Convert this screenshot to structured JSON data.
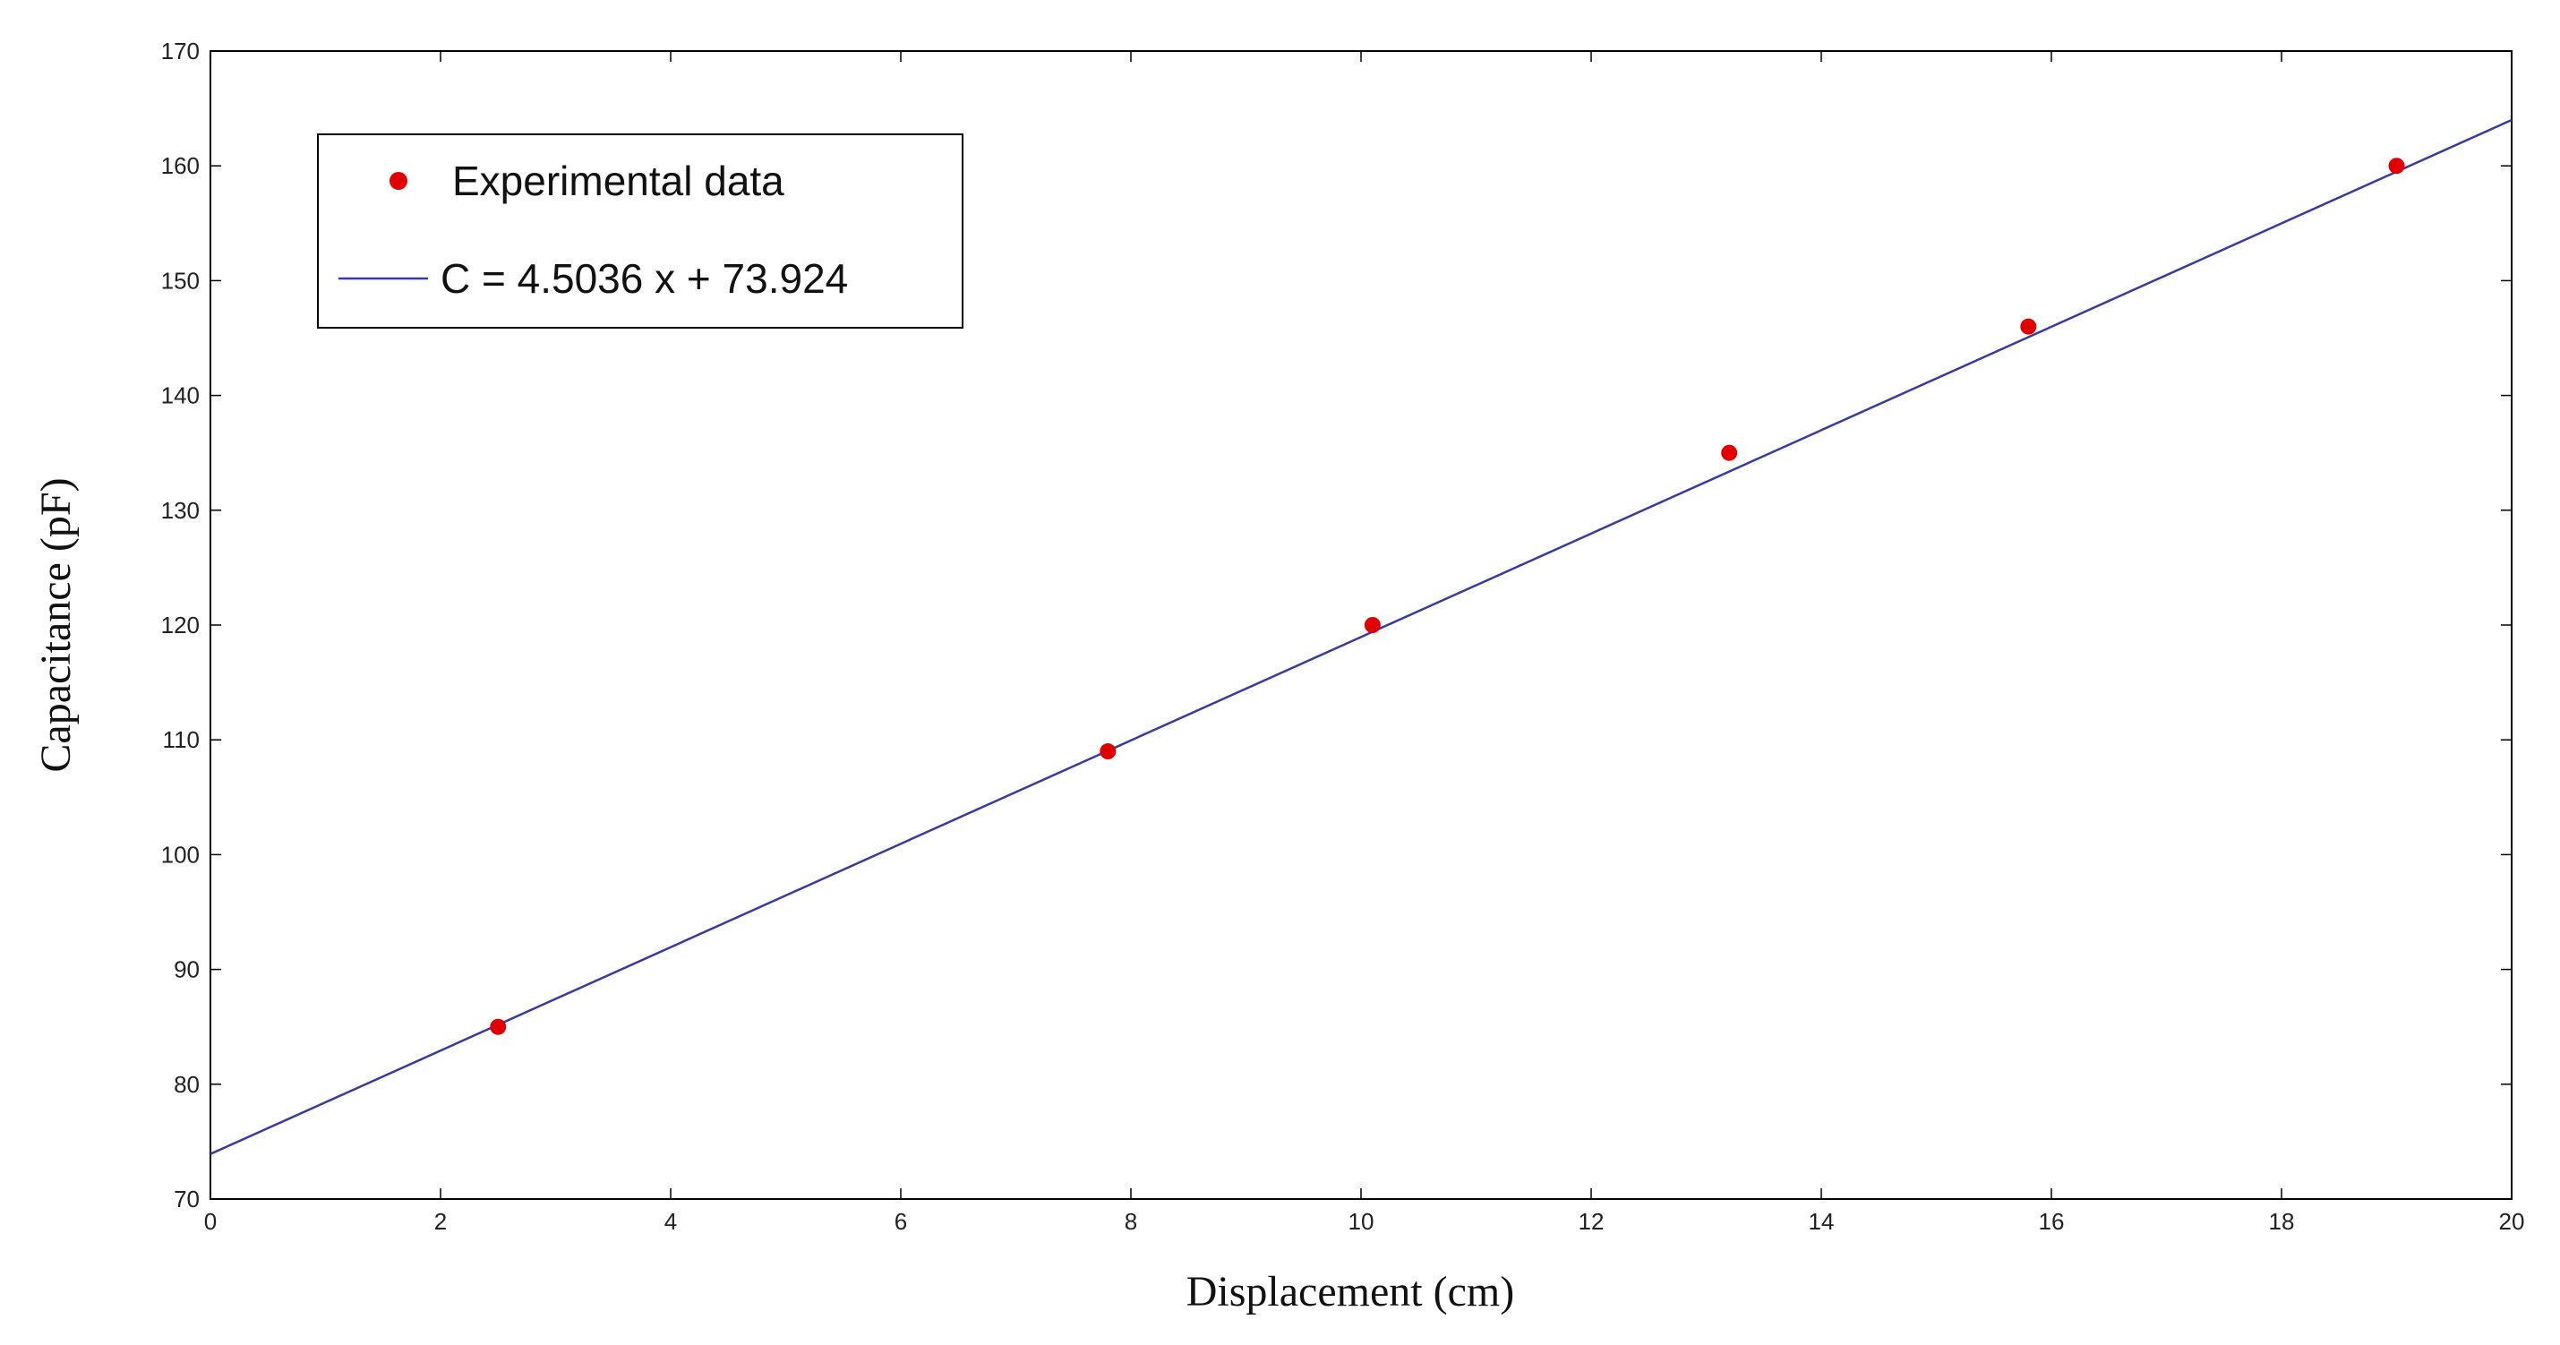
{
  "chart_data": {
    "type": "scatter",
    "xlabel": "Displacement (cm)",
    "ylabel": "Capacitance (pF)",
    "xlim": [
      0,
      20
    ],
    "ylim": [
      70,
      170
    ],
    "xticks": [
      0,
      2,
      4,
      6,
      8,
      10,
      12,
      14,
      16,
      18,
      20
    ],
    "yticks": [
      70,
      80,
      90,
      100,
      110,
      120,
      130,
      140,
      150,
      160,
      170
    ],
    "grid": false,
    "legend_position": "top-left",
    "series": [
      {
        "name": "Experimental data",
        "kind": "scatter",
        "color": "#e00000",
        "points": [
          {
            "x": 2.5,
            "y": 85
          },
          {
            "x": 7.8,
            "y": 109
          },
          {
            "x": 10.1,
            "y": 120
          },
          {
            "x": 13.2,
            "y": 135
          },
          {
            "x": 15.8,
            "y": 146
          },
          {
            "x": 19.0,
            "y": 160
          }
        ]
      },
      {
        "name": "C = 4.5036 x + 73.924",
        "kind": "line",
        "color": "#3a3aa0",
        "slope": 4.5036,
        "intercept": 73.924,
        "x_range": [
          0,
          20
        ]
      }
    ]
  }
}
